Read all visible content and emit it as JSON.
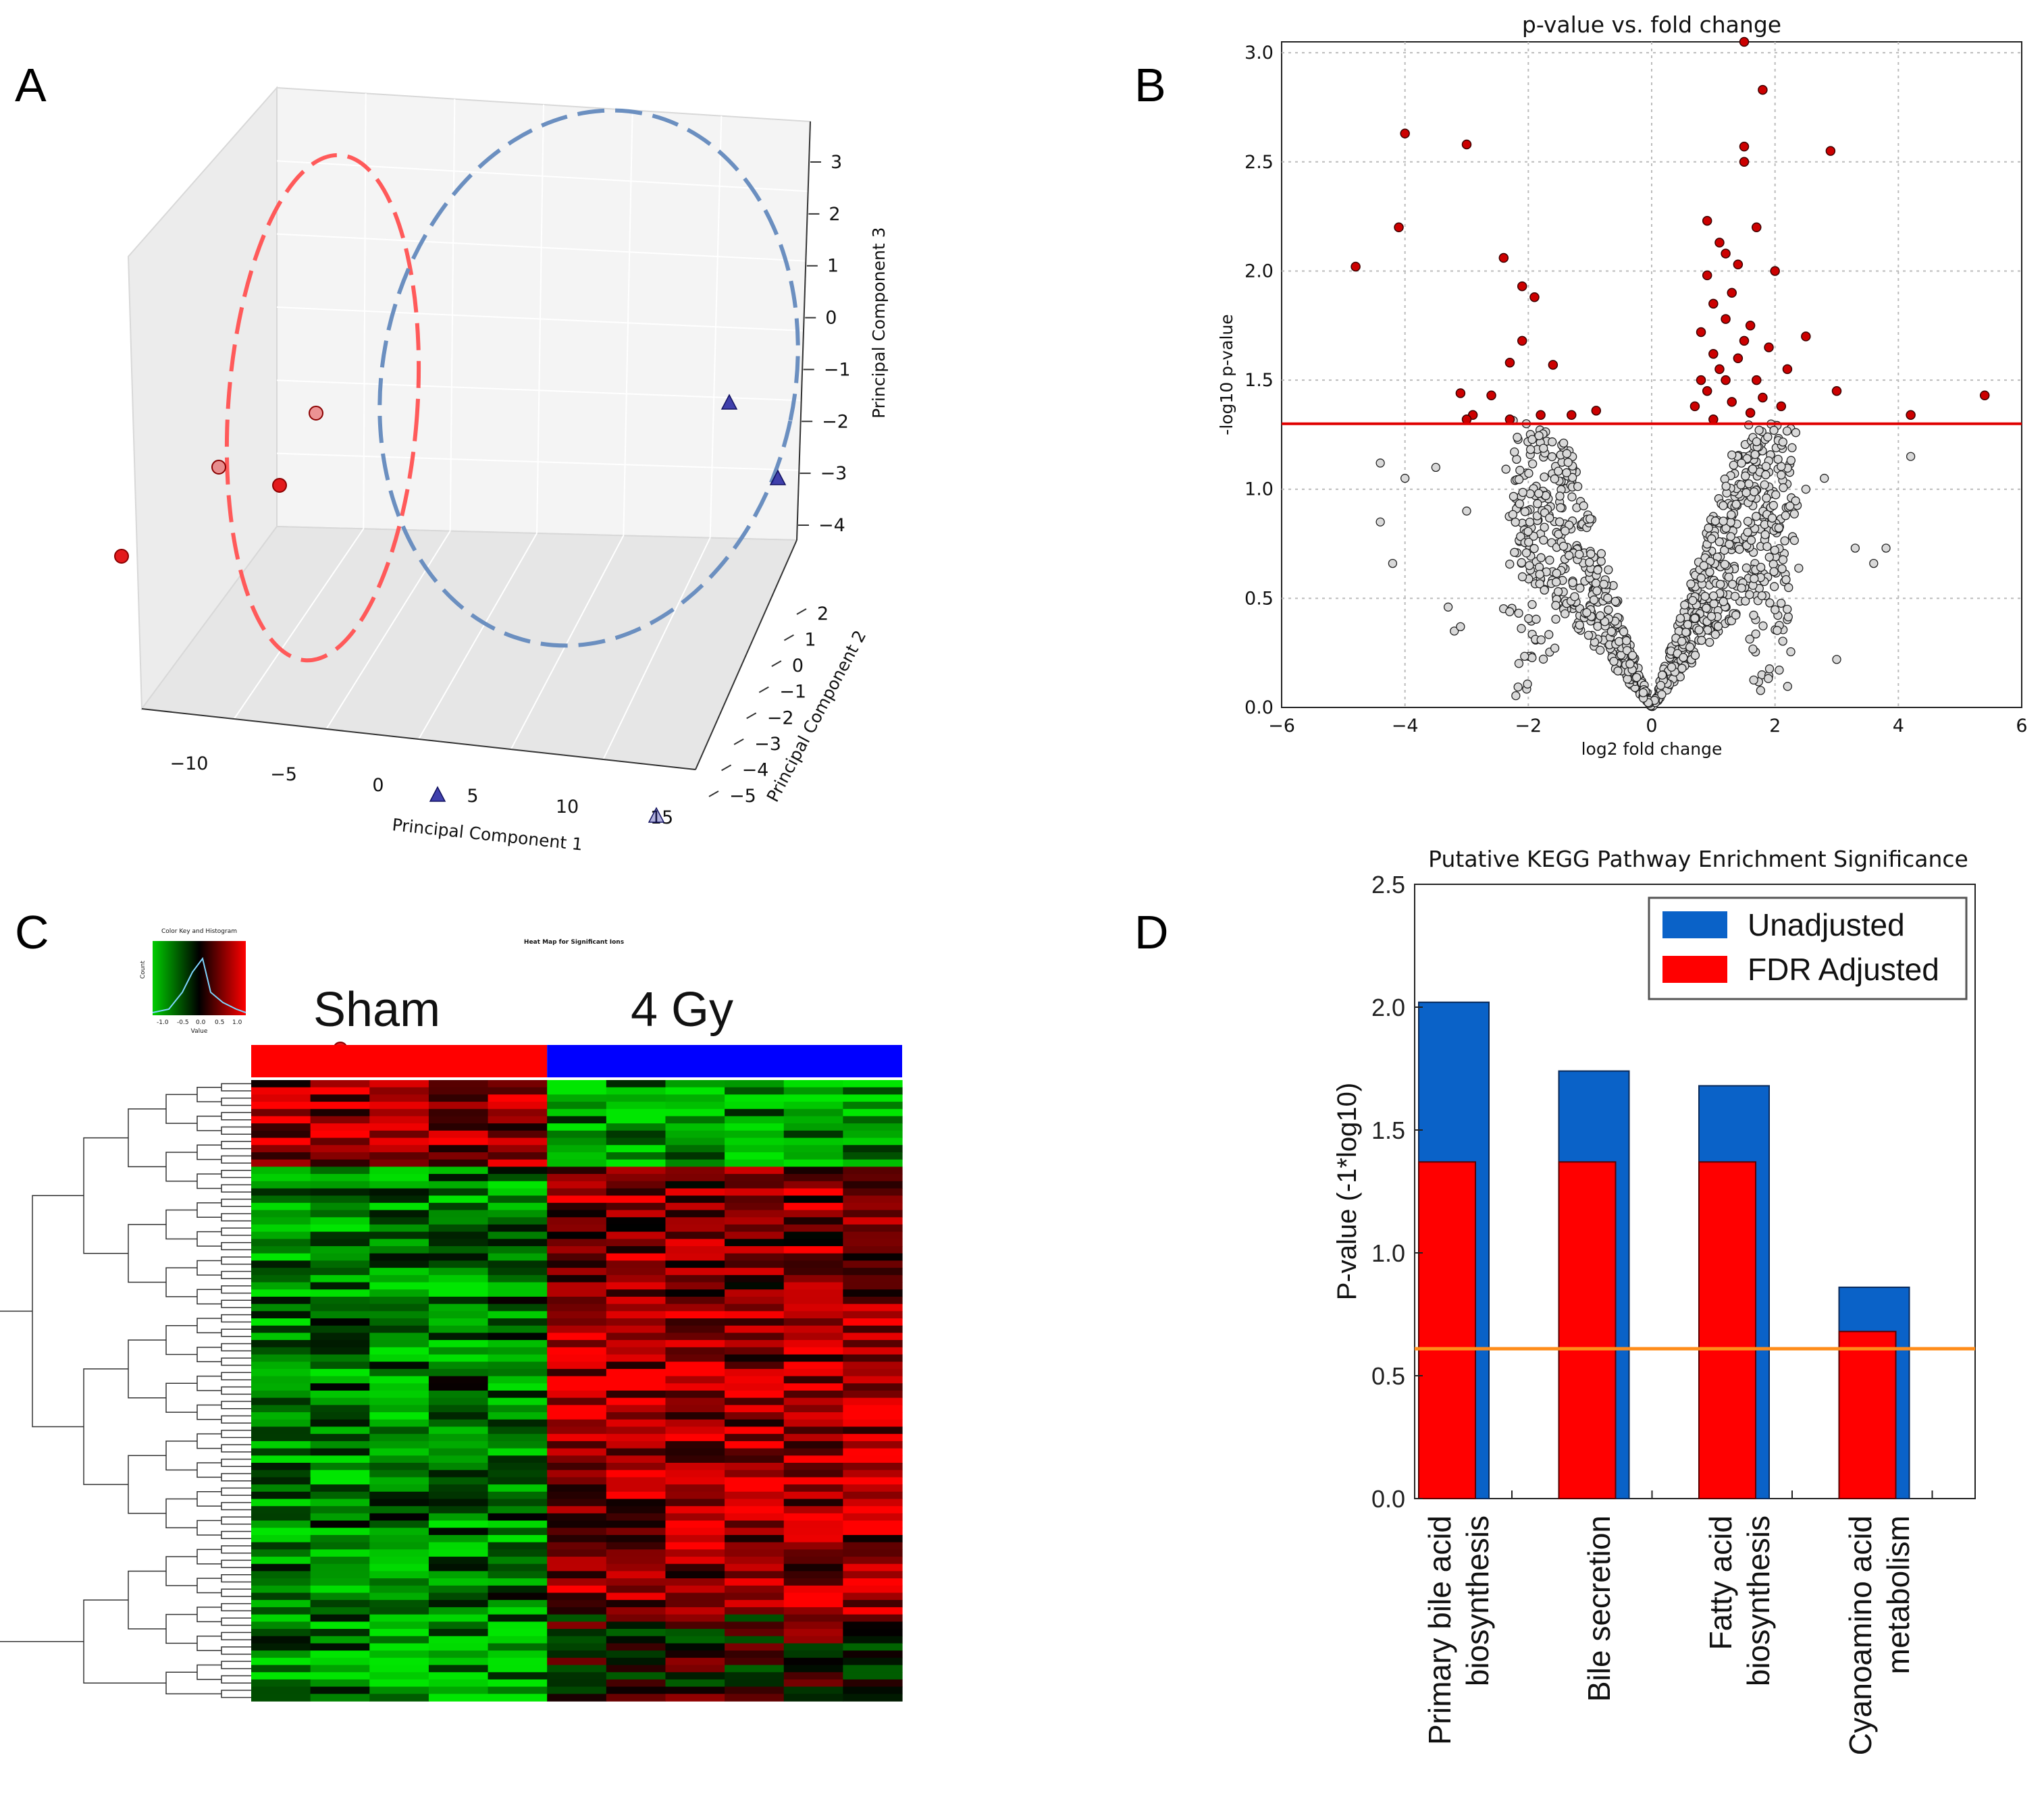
{
  "panels": {
    "a": {
      "letter": "A",
      "chart_data": {
        "type": "scatter",
        "title": "",
        "xlabel": "Principal Component 1",
        "ylabel": "Principal Component 2",
        "zlabel": "Principal Component 3",
        "x_ticks": [
          "−10",
          "−5",
          "0",
          "5",
          "10",
          "15"
        ],
        "y_ticks": [
          "2",
          "1",
          "0",
          "−1",
          "−2",
          "−3",
          "−4",
          "−5"
        ],
        "z_ticks": [
          "3",
          "2",
          "1",
          "0",
          "−1",
          "−2",
          "−3",
          "−4"
        ],
        "series": [
          {
            "name": "Sham",
            "marker": "circle",
            "color": "#e31a1c",
            "points": [
              {
                "x": -9,
                "y": -1,
                "z": 1.5
              },
              {
                "x": -6,
                "y": 0,
                "z": 2.3
              },
              {
                "x": -4,
                "y": 0.5,
                "z": 2.0
              },
              {
                "x": -3,
                "y": 1,
                "z": 2.7
              },
              {
                "x": 1,
                "y": -2,
                "z": -3.5
              }
            ]
          },
          {
            "name": "4 Gy",
            "marker": "triangle",
            "color": "#1f1f9e",
            "points": [
              {
                "x": 2,
                "y": 1,
                "z": -1.5
              },
              {
                "x": 10,
                "y": 2,
                "z": -1.8
              },
              {
                "x": 13,
                "y": 2,
                "z": 3.0
              },
              {
                "x": 15,
                "y": 2,
                "z": 2.2
              },
              {
                "x": 6,
                "y": -2,
                "z": -4
              },
              {
                "x": 9,
                "y": -1,
                "z": -3.8
              }
            ]
          }
        ]
      }
    },
    "b": {
      "letter": "B",
      "chart_data": {
        "type": "scatter",
        "title": "p-value vs. fold change",
        "xlabel": "log2 fold change",
        "ylabel": "-log10 p-value",
        "xlim": [
          -6,
          6
        ],
        "ylim": [
          0,
          3.05
        ],
        "x_ticks": [
          "−6",
          "−4",
          "−2",
          "0",
          "2",
          "4",
          "6"
        ],
        "y_ticks": [
          "0.0",
          "0.5",
          "1.0",
          "1.5",
          "2.0",
          "2.5",
          "3.0"
        ],
        "threshold": 1.3,
        "significant_color": "#cc0000",
        "nonsignificant_color": "#d9d9d9",
        "significant_points": [
          [
            -4.8,
            2.02
          ],
          [
            -4.1,
            2.2
          ],
          [
            -4.0,
            2.63
          ],
          [
            -3.0,
            2.58
          ],
          [
            -2.4,
            2.06
          ],
          [
            -2.1,
            1.93
          ],
          [
            -1.9,
            1.88
          ],
          [
            -2.1,
            1.68
          ],
          [
            -2.3,
            1.58
          ],
          [
            -2.6,
            1.43
          ],
          [
            -3.1,
            1.44
          ],
          [
            -2.9,
            1.34
          ],
          [
            -3.0,
            1.32
          ],
          [
            -1.6,
            1.57
          ],
          [
            -1.8,
            1.34
          ],
          [
            -2.3,
            1.32
          ],
          [
            -1.3,
            1.34
          ],
          [
            -0.9,
            1.36
          ],
          [
            0.9,
            2.23
          ],
          [
            1.1,
            2.13
          ],
          [
            1.2,
            2.08
          ],
          [
            0.9,
            1.98
          ],
          [
            1.4,
            2.03
          ],
          [
            1.0,
            1.85
          ],
          [
            1.3,
            1.9
          ],
          [
            1.6,
            1.75
          ],
          [
            1.2,
            1.78
          ],
          [
            0.8,
            1.72
          ],
          [
            1.5,
            1.68
          ],
          [
            1.9,
            1.65
          ],
          [
            2.2,
            1.55
          ],
          [
            2.5,
            1.7
          ],
          [
            1.7,
            2.2
          ],
          [
            1.5,
            2.5
          ],
          [
            1.5,
            2.57
          ],
          [
            1.8,
            2.83
          ],
          [
            1.5,
            3.05
          ],
          [
            2.0,
            2.0
          ],
          [
            2.9,
            2.55
          ],
          [
            3.0,
            1.45
          ],
          [
            4.2,
            1.34
          ],
          [
            5.4,
            1.43
          ],
          [
            1.0,
            1.62
          ],
          [
            1.1,
            1.55
          ],
          [
            0.8,
            1.5
          ],
          [
            0.9,
            1.45
          ],
          [
            1.2,
            1.5
          ],
          [
            1.3,
            1.4
          ],
          [
            1.6,
            1.35
          ],
          [
            1.8,
            1.42
          ],
          [
            2.1,
            1.38
          ],
          [
            0.7,
            1.38
          ],
          [
            1.0,
            1.32
          ],
          [
            1.4,
            1.6
          ],
          [
            1.7,
            1.5
          ]
        ]
      }
    },
    "c": {
      "letter": "C",
      "chart_data": {
        "type": "heatmap",
        "title": "Heat Map for Significant Ions",
        "column_groups": [
          {
            "name": "Sham",
            "color": "#ff0000",
            "columns": 5
          },
          {
            "name": "4 Gy",
            "color": "#0000ff",
            "columns": 6
          }
        ],
        "color_key": {
          "title": "Color Key and Histogram",
          "ylabel": "Count",
          "xlabel": "Value",
          "ticks": [
            "-1.0",
            "-0.5",
            "0.0",
            "0.5",
            "1.0"
          ],
          "low": "#00cc00",
          "mid": "#000000",
          "high": "#ff0000"
        },
        "row_bands": [
          {
            "rows": 12,
            "sham": 0.6,
            "gy": -0.7
          },
          {
            "rows": 18,
            "sham": -0.6,
            "gy": 0.5
          },
          {
            "rows": 44,
            "sham": -0.5,
            "gy": 0.6
          },
          {
            "rows": 12,
            "sham": -0.6,
            "gy": 0.1
          }
        ]
      }
    },
    "d": {
      "letter": "D",
      "chart_data": {
        "type": "bar",
        "title": "Putative KEGG Pathway Enrichment Significance",
        "xlabel": "",
        "ylabel": "P-value (-1*log10)",
        "ylim": [
          0,
          2.5
        ],
        "y_ticks": [
          "0.0",
          "0.5",
          "1.0",
          "1.5",
          "2.0",
          "2.5"
        ],
        "categories": [
          [
            "Primary bile acid",
            "biosynthesis"
          ],
          [
            "Bile secretion"
          ],
          [
            "Fatty acid",
            "biosynthesis"
          ],
          [
            "Cyanoamino acid",
            "metabolism"
          ]
        ],
        "series": [
          {
            "name": "Unadjusted",
            "color": "#0a62c8",
            "values": [
              2.02,
              1.74,
              1.68,
              0.86
            ]
          },
          {
            "name": "FDR Adjusted",
            "color": "#ff0000",
            "values": [
              1.37,
              1.37,
              1.37,
              0.68
            ]
          }
        ],
        "threshold": 0.61,
        "threshold_color": "#ff8c1a"
      }
    }
  }
}
